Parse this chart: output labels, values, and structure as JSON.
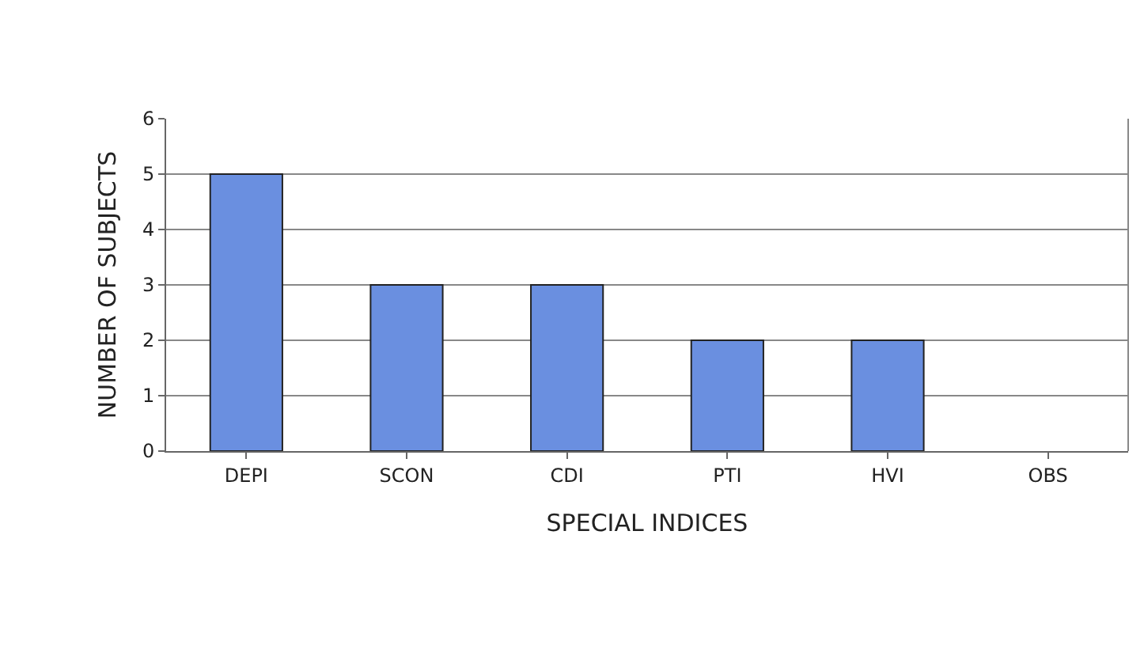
{
  "chart_data": {
    "type": "bar",
    "xlabel": "SPECIAL INDICES",
    "ylabel": "NUMBER OF SUBJECTS",
    "categories": [
      "DEPI",
      "SCON",
      "CDI",
      "PTI",
      "HVI",
      "OBS"
    ],
    "values": [
      5,
      3,
      3,
      2,
      2,
      0
    ],
    "color": "#6a8fe0",
    "ylim": [
      0,
      6
    ],
    "yticks": [
      0,
      1,
      2,
      3,
      4,
      5,
      6
    ],
    "grid": "y"
  }
}
